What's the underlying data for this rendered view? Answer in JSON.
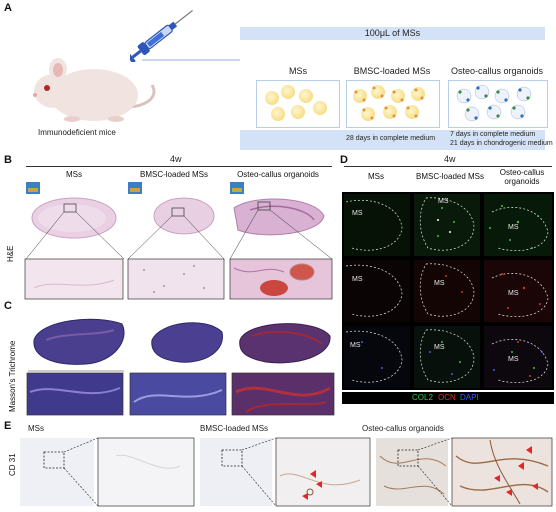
{
  "panels": {
    "A": {
      "label": "A",
      "mouse_caption": "Immunodeficient mice",
      "volume_label": "100μL of MSs",
      "groups": [
        "MSs",
        "BMSC-loaded MSs",
        "Osteo-callus organoids"
      ],
      "culture_bmsc": "28 days in complete medium",
      "culture_osteo_1": "7 days in complete medium",
      "culture_osteo_2": "21 days in chondrogenic medium"
    },
    "B": {
      "label": "B",
      "time": "4w",
      "row_label": "H&E",
      "columns": [
        "MSs",
        "BMSC-loaded MSs",
        "Osteo-callus organoids"
      ]
    },
    "C": {
      "label": "C",
      "row_label": "Masson's Trichrome"
    },
    "D": {
      "label": "D",
      "time": "4w",
      "columns": [
        "MSs",
        "BMSC-loaded MSs",
        "Osteo-callus\norganoids"
      ],
      "ms_tag": "MS",
      "legend": {
        "col2": "COL2",
        "ocn": "OCN",
        "dapi": "DAPI"
      },
      "legend_colors": {
        "col2": "#2ecc40",
        "ocn": "#e0302a",
        "dapi": "#3a5cff"
      }
    },
    "E": {
      "label": "E",
      "row_label": "CD 31",
      "columns": [
        "MSs",
        "BMSC-loaded MSs",
        "Osteo-callus organoids"
      ]
    }
  }
}
